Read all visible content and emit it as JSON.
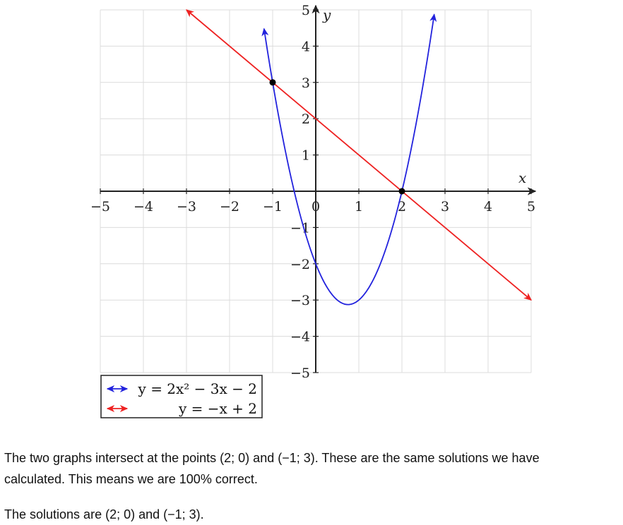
{
  "chart_data": {
    "type": "line",
    "xlabel": "x",
    "ylabel": "y",
    "xlim": [
      -5,
      5
    ],
    "ylim": [
      -5,
      5
    ],
    "grid": true,
    "x_ticks": [
      -5,
      -4,
      -3,
      -2,
      -1,
      0,
      1,
      2,
      3,
      4,
      5
    ],
    "y_ticks": [
      5,
      4,
      3,
      2,
      1,
      -1,
      -2,
      -3,
      -4,
      -5
    ],
    "x_tick_labels": [
      "−5",
      "−4",
      "−3",
      "−2",
      "−1",
      "0",
      "1",
      "2",
      "3",
      "4",
      "5"
    ],
    "y_tick_labels": [
      "5",
      "4",
      "3",
      "2",
      "1",
      "−1",
      "−2",
      "−3",
      "−4",
      "−5"
    ],
    "series": [
      {
        "name": "y = 2x² − 3x − 2",
        "kind": "parabola",
        "coefficients": [
          2,
          -3,
          -2
        ],
        "x_range": [
          -1.2,
          2.75
        ],
        "color": "#2222dd"
      },
      {
        "name": "y = −x + 2",
        "kind": "line",
        "slope": -1,
        "intercept": 2,
        "x_range": [
          -3,
          5
        ],
        "color": "#ee2222"
      }
    ],
    "points": [
      {
        "x": 2,
        "y": 0
      },
      {
        "x": -1,
        "y": 3
      }
    ],
    "legend_position": "bottom-left"
  },
  "text": {
    "line1": "The two graphs intersect at the points (2; 0) and (−1; 3). These are the same solutions we have",
    "line2": "calculated. This means we are 100% correct.",
    "line3": "The solutions are (2; 0) and (−1; 3)."
  }
}
